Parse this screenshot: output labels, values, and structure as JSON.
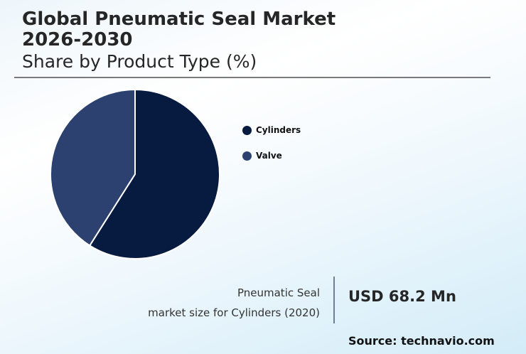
{
  "header": {
    "title_line1": "Global Pneumatic Seal Market",
    "title_line2": "2026-2030",
    "subtitle": "Share by Product Type (%)"
  },
  "legend": [
    {
      "label": "Cylinders",
      "color": "#071b40"
    },
    {
      "label": "Valve",
      "color": "#2c416f"
    }
  ],
  "kpi": {
    "label_line1": "Pneumatic Seal",
    "label_line2": "market size for Cylinders (2020)",
    "value": "USD 68.2 Mn"
  },
  "source": "Source: technavio.com",
  "chart_data": {
    "type": "pie",
    "title": "Global Pneumatic Seal Market 2026-2030",
    "subtitle": "Share by Product Type (%)",
    "categories": [
      "Cylinders",
      "Valve"
    ],
    "values": [
      59,
      41
    ],
    "colors": [
      "#071b40",
      "#2c416f"
    ],
    "start_angle": "12 o'clock, clockwise",
    "legend_position": "right",
    "data_labels": false
  }
}
